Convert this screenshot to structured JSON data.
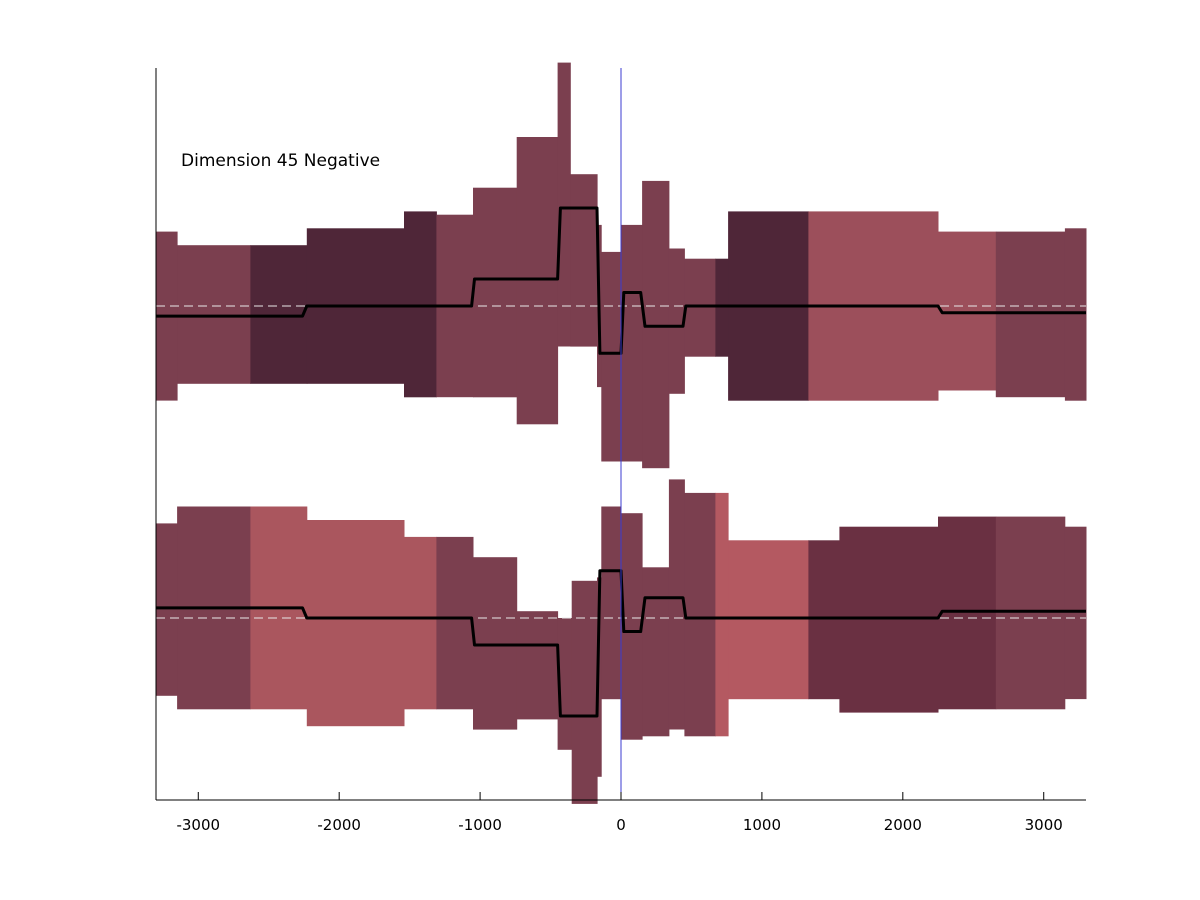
{
  "chart_data": {
    "type": "area",
    "annotation": "Dimension 45 Negative",
    "xlim": [
      -3300,
      3300
    ],
    "x_ticks": [
      -3000,
      -2000,
      -1000,
      0,
      1000,
      2000,
      3000
    ],
    "x_tick_labels": [
      "-3000",
      "-2000",
      "-1000",
      "0",
      "1000",
      "2000",
      "3000"
    ],
    "vertical_line_x": 0,
    "grid": false,
    "panels": [
      {
        "id": "top",
        "baseline": 0,
        "ylim": [
          -1.2,
          1.4
        ],
        "bands": [
          {
            "x0": -3300,
            "x1": -3150,
            "lo": -0.28,
            "hi": 0.22,
            "color": "#7b3f4f"
          },
          {
            "x0": -3150,
            "x1": -2630,
            "lo": -0.23,
            "hi": 0.18,
            "color": "#7b3f4f"
          },
          {
            "x0": -2630,
            "x1": -2230,
            "lo": -0.23,
            "hi": 0.18,
            "color": "#4f2638"
          },
          {
            "x0": -2230,
            "x1": -1540,
            "lo": -0.23,
            "hi": 0.23,
            "color": "#4f2638"
          },
          {
            "x0": -1540,
            "x1": -1310,
            "lo": -0.27,
            "hi": 0.28,
            "color": "#4f2638"
          },
          {
            "x0": -1310,
            "x1": -1050,
            "lo": -0.27,
            "hi": 0.27,
            "color": "#7b3f4f"
          },
          {
            "x0": -1050,
            "x1": -740,
            "lo": -0.27,
            "hi": 0.35,
            "color": "#7b3f4f"
          },
          {
            "x0": -740,
            "x1": -450,
            "lo": -0.35,
            "hi": 0.5,
            "color": "#7b3f4f"
          },
          {
            "x0": -450,
            "x1": -360,
            "lo": -0.12,
            "hi": 0.72,
            "color": "#7b3f4f"
          },
          {
            "x0": -360,
            "x1": -170,
            "lo": -0.12,
            "hi": 0.39,
            "color": "#7b3f4f"
          },
          {
            "x0": -170,
            "x1": -140,
            "lo": -0.24,
            "hi": 0.24,
            "color": "#7b3f4f"
          },
          {
            "x0": -140,
            "x1": 0,
            "lo": -0.46,
            "hi": 0.16,
            "color": "#7b3f4f"
          },
          {
            "x0": 0,
            "x1": 150,
            "lo": -0.46,
            "hi": 0.24,
            "color": "#7b3f4f"
          },
          {
            "x0": 150,
            "x1": 340,
            "lo": -0.48,
            "hi": 0.37,
            "color": "#7b3f4f"
          },
          {
            "x0": 340,
            "x1": 450,
            "lo": -0.26,
            "hi": 0.17,
            "color": "#7b3f4f"
          },
          {
            "x0": 450,
            "x1": 670,
            "lo": -0.15,
            "hi": 0.14,
            "color": "#7b3f4f"
          },
          {
            "x0": 670,
            "x1": 760,
            "lo": -0.15,
            "hi": 0.14,
            "color": "#4f2638"
          },
          {
            "x0": 760,
            "x1": 1330,
            "lo": -0.28,
            "hi": 0.28,
            "color": "#4f2638"
          },
          {
            "x0": 1330,
            "x1": 2250,
            "lo": -0.28,
            "hi": 0.28,
            "color": "#9c4f5b"
          },
          {
            "x0": 2250,
            "x1": 2660,
            "lo": -0.25,
            "hi": 0.22,
            "color": "#9c4f5b"
          },
          {
            "x0": 2660,
            "x1": 3150,
            "lo": -0.27,
            "hi": 0.22,
            "color": "#7b3f4f"
          },
          {
            "x0": 3150,
            "x1": 3300,
            "lo": -0.28,
            "hi": 0.23,
            "color": "#7b3f4f"
          }
        ],
        "line": {
          "color": "#000000",
          "x": [
            -3300,
            -2260,
            -2230,
            -1060,
            -1040,
            -450,
            -430,
            -170,
            -150,
            0,
            20,
            120,
            140,
            170,
            190,
            440,
            460,
            2250,
            2280,
            3300
          ],
          "y": [
            -0.03,
            -0.03,
            0.0,
            0.0,
            0.08,
            0.08,
            0.29,
            0.29,
            -0.14,
            -0.14,
            0.04,
            0.04,
            0.04,
            -0.06,
            -0.06,
            -0.06,
            0.0,
            0.0,
            -0.02,
            -0.02
          ]
        }
      },
      {
        "id": "bottom",
        "baseline": 0,
        "ylim": [
          -1.2,
          1.4
        ],
        "bands": [
          {
            "x0": -3300,
            "x1": -3150,
            "lo": -0.23,
            "hi": 0.28,
            "color": "#7b3f4f"
          },
          {
            "x0": -3150,
            "x1": -2630,
            "lo": -0.27,
            "hi": 0.33,
            "color": "#7b3f4f"
          },
          {
            "x0": -2630,
            "x1": -2230,
            "lo": -0.27,
            "hi": 0.33,
            "color": "#aa565e"
          },
          {
            "x0": -2230,
            "x1": -1540,
            "lo": -0.32,
            "hi": 0.29,
            "color": "#aa565e"
          },
          {
            "x0": -1540,
            "x1": -1310,
            "lo": -0.27,
            "hi": 0.24,
            "color": "#aa565e"
          },
          {
            "x0": -1310,
            "x1": -1050,
            "lo": -0.27,
            "hi": 0.24,
            "color": "#7b3f4f"
          },
          {
            "x0": -1050,
            "x1": -740,
            "lo": -0.33,
            "hi": 0.18,
            "color": "#7b3f4f"
          },
          {
            "x0": -740,
            "x1": -450,
            "lo": -0.3,
            "hi": 0.02,
            "color": "#7b3f4f"
          },
          {
            "x0": -450,
            "x1": -350,
            "lo": -0.39,
            "hi": 0.0,
            "color": "#7b3f4f"
          },
          {
            "x0": -350,
            "x1": -170,
            "lo": -0.55,
            "hi": 0.11,
            "color": "#7b3f4f"
          },
          {
            "x0": -170,
            "x1": -140,
            "lo": -0.47,
            "hi": 0.12,
            "color": "#7b3f4f"
          },
          {
            "x0": -140,
            "x1": 0,
            "lo": -0.24,
            "hi": 0.33,
            "color": "#7b3f4f"
          },
          {
            "x0": 0,
            "x1": 150,
            "lo": -0.36,
            "hi": 0.31,
            "color": "#7b3f4f"
          },
          {
            "x0": 150,
            "x1": 340,
            "lo": -0.35,
            "hi": 0.15,
            "color": "#7b3f4f"
          },
          {
            "x0": 340,
            "x1": 450,
            "lo": -0.33,
            "hi": 0.41,
            "color": "#7b3f4f"
          },
          {
            "x0": 450,
            "x1": 670,
            "lo": -0.35,
            "hi": 0.37,
            "color": "#7b3f4f"
          },
          {
            "x0": 670,
            "x1": 760,
            "lo": -0.35,
            "hi": 0.37,
            "color": "#b45961"
          },
          {
            "x0": 760,
            "x1": 1330,
            "lo": -0.24,
            "hi": 0.23,
            "color": "#b45961"
          },
          {
            "x0": 1330,
            "x1": 1550,
            "lo": -0.24,
            "hi": 0.23,
            "color": "#6a3042"
          },
          {
            "x0": 1550,
            "x1": 2250,
            "lo": -0.28,
            "hi": 0.27,
            "color": "#6a3042"
          },
          {
            "x0": 2250,
            "x1": 2660,
            "lo": -0.27,
            "hi": 0.3,
            "color": "#6a3042"
          },
          {
            "x0": 2660,
            "x1": 3150,
            "lo": -0.27,
            "hi": 0.3,
            "color": "#7b3f4f"
          },
          {
            "x0": 3150,
            "x1": 3300,
            "lo": -0.24,
            "hi": 0.27,
            "color": "#7b3f4f"
          }
        ],
        "line": {
          "color": "#000000",
          "x": [
            -3300,
            -2260,
            -2230,
            -1060,
            -1040,
            -450,
            -430,
            -170,
            -150,
            0,
            20,
            120,
            140,
            170,
            190,
            440,
            460,
            2250,
            2280,
            3300
          ],
          "y": [
            0.03,
            0.03,
            0.0,
            0.0,
            -0.08,
            -0.08,
            -0.29,
            -0.29,
            0.14,
            0.14,
            -0.04,
            -0.04,
            -0.04,
            0.06,
            0.06,
            0.06,
            0.0,
            0.0,
            0.02,
            0.02
          ]
        }
      }
    ]
  }
}
